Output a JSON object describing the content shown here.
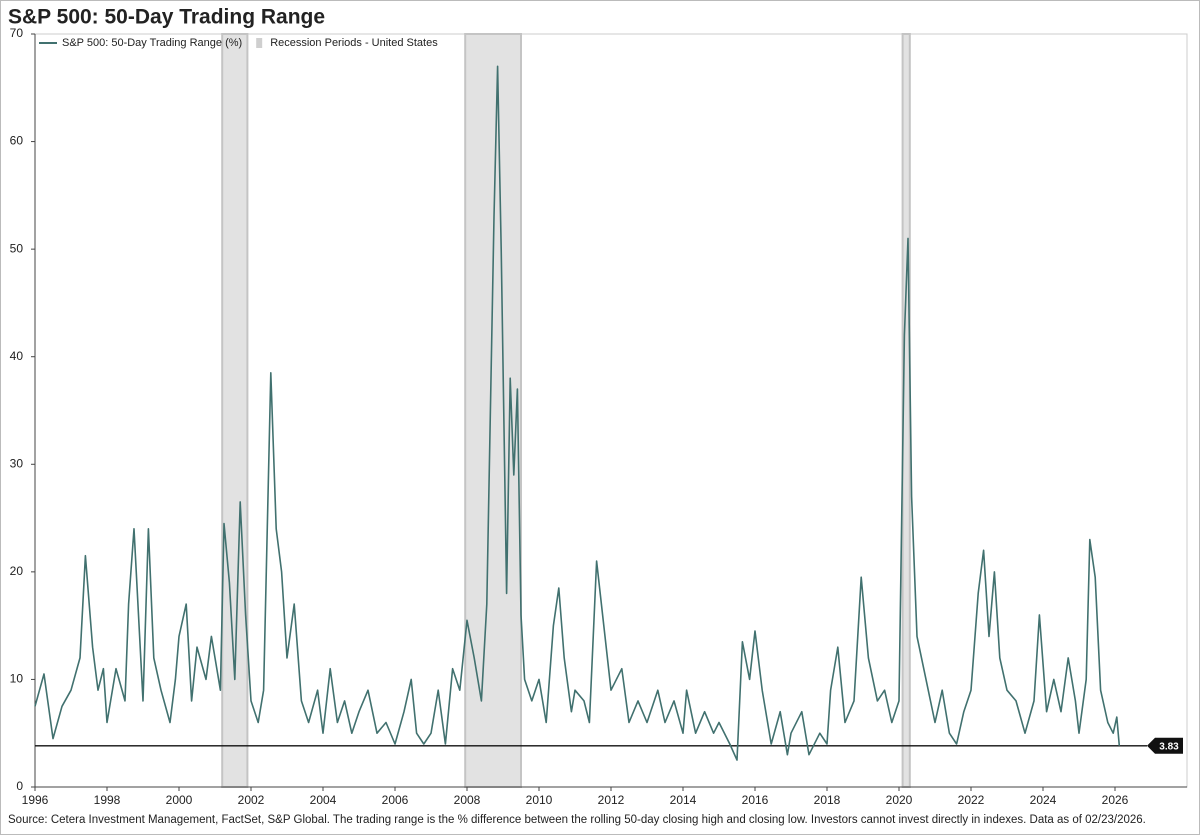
{
  "chart_data": {
    "type": "line",
    "title": "S&P 500: 50-Day Trading Range",
    "source": "Source: Cetera Investment Management, FactSet, S&P Global. The trading range is the % difference between the rolling 50-day closing high and closing low. Investors cannot invest directly in indexes. Data as of 02/23/2026.",
    "x": [
      1996.0,
      1996.25,
      1996.5,
      1996.75,
      1997.0,
      1997.25,
      1997.4,
      1997.6,
      1997.75,
      1997.9,
      1998.0,
      1998.25,
      1998.5,
      1998.6,
      1998.75,
      1999.0,
      1999.15,
      1999.3,
      1999.5,
      1999.75,
      1999.9,
      2000.0,
      2000.2,
      2000.35,
      2000.5,
      2000.75,
      2000.9,
      2001.0,
      2001.15,
      2001.25,
      2001.4,
      2001.55,
      2001.7,
      2001.85,
      2002.0,
      2002.2,
      2002.35,
      2002.55,
      2002.7,
      2002.85,
      2003.0,
      2003.2,
      2003.4,
      2003.6,
      2003.85,
      2004.0,
      2004.2,
      2004.4,
      2004.6,
      2004.8,
      2005.0,
      2005.25,
      2005.5,
      2005.75,
      2006.0,
      2006.25,
      2006.45,
      2006.6,
      2006.8,
      2007.0,
      2007.2,
      2007.4,
      2007.6,
      2007.8,
      2008.0,
      2008.2,
      2008.4,
      2008.55,
      2008.75,
      2008.85,
      2008.95,
      2009.1,
      2009.2,
      2009.3,
      2009.4,
      2009.5,
      2009.6,
      2009.8,
      2010.0,
      2010.2,
      2010.4,
      2010.55,
      2010.7,
      2010.9,
      2011.0,
      2011.25,
      2011.4,
      2011.6,
      2011.8,
      2012.0,
      2012.3,
      2012.5,
      2012.75,
      2013.0,
      2013.3,
      2013.5,
      2013.75,
      2014.0,
      2014.1,
      2014.35,
      2014.6,
      2014.85,
      2015.0,
      2015.3,
      2015.5,
      2015.65,
      2015.85,
      2016.0,
      2016.2,
      2016.45,
      2016.7,
      2016.9,
      2017.0,
      2017.3,
      2017.5,
      2017.8,
      2018.0,
      2018.1,
      2018.3,
      2018.5,
      2018.75,
      2018.95,
      2019.15,
      2019.4,
      2019.6,
      2019.8,
      2020.0,
      2020.15,
      2020.25,
      2020.35,
      2020.5,
      2020.75,
      2021.0,
      2021.2,
      2021.4,
      2021.6,
      2021.8,
      2022.0,
      2022.2,
      2022.35,
      2022.5,
      2022.65,
      2022.8,
      2023.0,
      2023.25,
      2023.5,
      2023.75,
      2023.9,
      2024.1,
      2024.3,
      2024.5,
      2024.7,
      2024.9,
      2025.0,
      2025.2,
      2025.3,
      2025.45,
      2025.6,
      2025.8,
      2025.95,
      2026.05,
      2026.12
    ],
    "series": [
      {
        "name": "S&P 500: 50-Day Trading Range (%)",
        "color": "#41716f",
        "values": [
          7.5,
          10.5,
          4.5,
          7.5,
          9,
          12,
          21.5,
          13,
          9,
          11,
          6,
          11,
          8,
          17,
          24,
          8,
          24,
          12,
          9,
          6,
          10,
          14,
          17,
          8,
          13,
          10,
          14,
          12,
          9,
          24.5,
          19,
          10,
          26.5,
          16,
          8,
          6,
          9,
          38.5,
          24,
          20,
          12,
          17,
          8,
          6,
          9,
          5,
          11,
          6,
          8,
          5,
          7,
          9,
          5,
          6,
          4,
          7,
          10,
          5,
          4,
          5,
          9,
          4,
          11,
          9,
          15.5,
          12,
          8,
          17,
          53,
          67,
          50,
          18,
          38,
          29,
          37,
          16,
          10,
          8,
          10,
          6,
          15,
          18.5,
          12,
          7,
          9,
          8,
          6,
          21,
          15,
          9,
          11,
          6,
          8,
          6,
          9,
          6,
          8,
          5,
          9,
          5,
          7,
          5,
          6,
          4,
          2.5,
          13.5,
          10,
          14.5,
          9,
          4,
          7,
          3,
          5,
          7,
          3,
          5,
          4,
          9,
          13,
          6,
          8,
          19.5,
          12,
          8,
          9,
          6,
          8,
          42,
          51,
          27,
          14,
          10,
          6,
          9,
          5,
          4,
          7,
          9,
          18,
          22,
          14,
          20,
          12,
          9,
          8,
          5,
          8,
          16,
          7,
          10,
          7,
          12,
          8,
          5,
          10,
          23,
          19.5,
          9,
          6,
          5,
          6.5,
          3.83
        ]
      }
    ],
    "recession_name": "Recession Periods - United States",
    "recession_color": "#e2e2e2",
    "recessions": [
      [
        2001.2,
        2001.9
      ],
      [
        2007.95,
        2009.5
      ],
      [
        2020.1,
        2020.3
      ]
    ],
    "reference_value": 3.83,
    "xlim": [
      1996,
      2028
    ],
    "xticks": [
      1996,
      1998,
      2000,
      2002,
      2004,
      2006,
      2008,
      2010,
      2012,
      2014,
      2016,
      2018,
      2020,
      2022,
      2024,
      2026
    ],
    "ylim": [
      0,
      70
    ],
    "yticks": [
      0,
      10,
      20,
      30,
      40,
      50,
      60,
      70
    ]
  }
}
